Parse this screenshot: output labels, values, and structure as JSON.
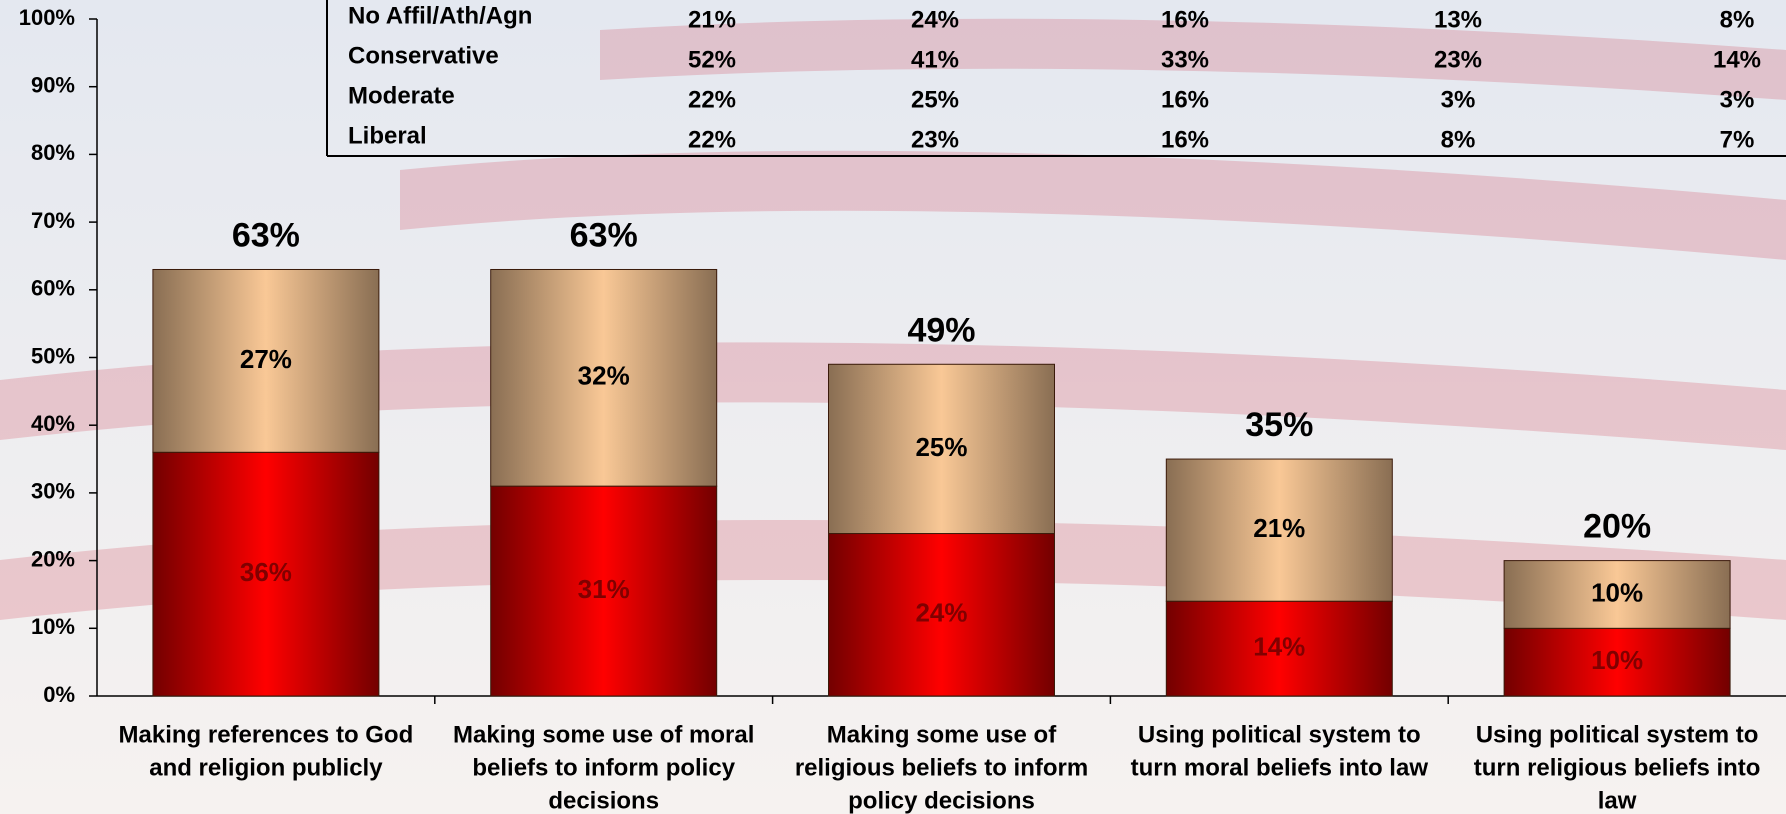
{
  "chart_data": {
    "type": "stacked-bar",
    "categories": [
      [
        "Making references to God",
        "and religion publicly"
      ],
      [
        "Making some use of moral",
        "beliefs to inform policy",
        "decisions"
      ],
      [
        "Making some use of",
        "religious beliefs to inform",
        "policy decisions"
      ],
      [
        "Using political system to",
        "turn moral beliefs into law"
      ],
      [
        "Using political system to",
        "turn religious beliefs into",
        "law"
      ]
    ],
    "series": [
      {
        "color": "#ff0000",
        "values": [
          36,
          31,
          24,
          14,
          10
        ],
        "value_labels": [
          "36%",
          "31%",
          "24%",
          "14%",
          "10%"
        ]
      },
      {
        "color": "#f9c896",
        "values": [
          27,
          32,
          25,
          21,
          10
        ],
        "value_labels": [
          "27%",
          "32%",
          "25%",
          "21%",
          "10%"
        ]
      }
    ],
    "totals": [
      63,
      63,
      49,
      35,
      20
    ],
    "total_labels": [
      "63%",
      "63%",
      "49%",
      "35%",
      "20%"
    ],
    "ylim": [
      0,
      100
    ],
    "yticks": [
      {
        "value": 0,
        "label": "0%"
      },
      {
        "value": 10,
        "label": "10%"
      },
      {
        "value": 20,
        "label": "20%"
      },
      {
        "value": 30,
        "label": "30%"
      },
      {
        "value": 40,
        "label": "40%"
      },
      {
        "value": 50,
        "label": "50%"
      },
      {
        "value": 60,
        "label": "60%"
      },
      {
        "value": 70,
        "label": "70%"
      },
      {
        "value": 80,
        "label": "80%"
      },
      {
        "value": 90,
        "label": "90%"
      },
      {
        "value": 100,
        "label": "100%"
      }
    ],
    "table": {
      "rows": [
        [
          "No Affil/Ath/Agn",
          "21%",
          "24%",
          "16%",
          "13%",
          "8%"
        ],
        [
          "Conservative",
          "52%",
          "41%",
          "33%",
          "23%",
          "14%"
        ],
        [
          "Moderate",
          "22%",
          "25%",
          "16%",
          "3%",
          "3%"
        ],
        [
          "Liberal",
          "22%",
          "23%",
          "16%",
          "8%",
          "7%"
        ]
      ]
    }
  }
}
